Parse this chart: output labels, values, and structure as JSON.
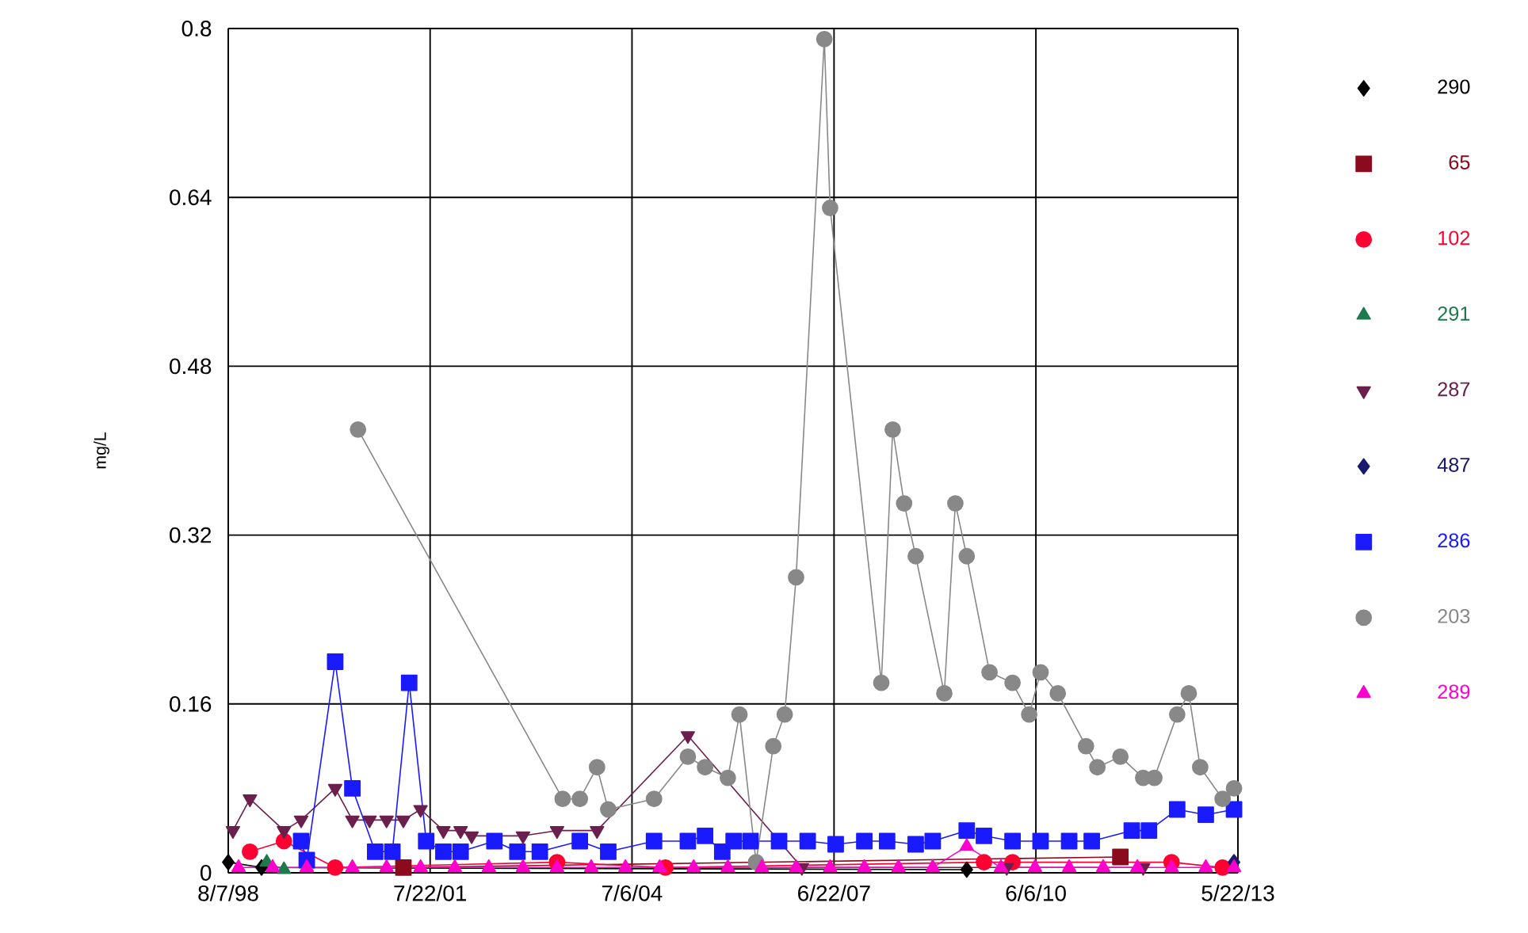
{
  "chart_data": {
    "type": "line",
    "ylabel": "mg/L",
    "xlim": [
      "1998-08-07",
      "2013-05-22"
    ],
    "xticks": [
      {
        "value": "1998-08-07",
        "label": "8/7/98"
      },
      {
        "value": "2001-07-22",
        "label": "7/22/01"
      },
      {
        "value": "2004-07-06",
        "label": "7/6/04"
      },
      {
        "value": "2007-06-22",
        "label": "6/22/07"
      },
      {
        "value": "2010-06-06",
        "label": "6/6/10"
      },
      {
        "value": "2013-05-22",
        "label": "5/22/13"
      }
    ],
    "ylim": [
      0,
      0.8
    ],
    "yticks": [
      0,
      0.16,
      0.32,
      0.48,
      0.64,
      0.8
    ],
    "grid": true,
    "legend": "right",
    "series": [
      {
        "name": "290",
        "color": "#000000",
        "marker": "diamond",
        "x": [
          "1998-08-07",
          "1999-02",
          "2009-06"
        ],
        "values": [
          0.01,
          0.005,
          0.003
        ]
      },
      {
        "name": "65",
        "color": "#8b0a1e",
        "marker": "square",
        "x": [
          "2001-03",
          "2011-09"
        ],
        "values": [
          0.005,
          0.015
        ]
      },
      {
        "name": "102",
        "color": "#ff0033",
        "marker": "circle",
        "x": [
          "1998-12",
          "1999-06",
          "2000-03",
          "2003-06",
          "2005-01",
          "2009-09",
          "2010-02",
          "2012-06",
          "2013-03"
        ],
        "values": [
          0.02,
          0.03,
          0.005,
          0.01,
          0.005,
          0.01,
          0.01,
          0.01,
          0.005
        ]
      },
      {
        "name": "291",
        "color": "#1e7a4a",
        "marker": "triangle",
        "x": [
          "1999-03",
          "1999-06"
        ],
        "values": [
          0.01,
          0.003
        ]
      },
      {
        "name": "287",
        "color": "#6b1f4d",
        "marker": "triangle-down",
        "x": [
          "1998-09",
          "1998-12",
          "1999-06",
          "1999-09",
          "2000-03",
          "2000-06",
          "2000-09",
          "2000-12",
          "2001-03",
          "2001-06",
          "2001-10",
          "2002-01",
          "2002-03",
          "2002-12",
          "2003-06",
          "2004-01",
          "2005-05",
          "2007-01",
          "2010-01",
          "2012-01"
        ],
        "values": [
          0.04,
          0.07,
          0.04,
          0.05,
          0.08,
          0.05,
          0.05,
          0.05,
          0.05,
          0.06,
          0.04,
          0.04,
          0.035,
          0.035,
          0.04,
          0.04,
          0.13,
          0.005,
          0.005,
          0.005
        ]
      },
      {
        "name": "487",
        "color": "#1a1a6e",
        "marker": "diamond",
        "x": [
          "2013-05"
        ],
        "values": [
          0.01
        ]
      },
      {
        "name": "286",
        "color": "#1a1aff",
        "marker": "square",
        "x": [
          "1999-09",
          "1999-10",
          "2000-03",
          "2000-06",
          "2000-10",
          "2001-01",
          "2001-04",
          "2001-07",
          "2001-10",
          "2002-01",
          "2002-07",
          "2002-11",
          "2003-03",
          "2003-10",
          "2004-03",
          "2004-11",
          "2005-05",
          "2005-08",
          "2005-11",
          "2006-01",
          "2006-04",
          "2006-09",
          "2007-02",
          "2007-07",
          "2007-12",
          "2008-04",
          "2008-09",
          "2008-12",
          "2009-06",
          "2009-09",
          "2010-02",
          "2010-07",
          "2010-12",
          "2011-04",
          "2011-11",
          "2012-02",
          "2012-07",
          "2012-12",
          "2013-05"
        ],
        "values": [
          0.03,
          0.012,
          0.2,
          0.08,
          0.02,
          0.02,
          0.18,
          0.03,
          0.02,
          0.02,
          0.03,
          0.02,
          0.02,
          0.03,
          0.02,
          0.03,
          0.03,
          0.035,
          0.02,
          0.03,
          0.03,
          0.03,
          0.03,
          0.027,
          0.03,
          0.03,
          0.027,
          0.03,
          0.04,
          0.035,
          0.03,
          0.03,
          0.03,
          0.03,
          0.04,
          0.04,
          0.06,
          0.055,
          0.06
        ]
      },
      {
        "name": "203",
        "color": "#888888",
        "marker": "circle",
        "x": [
          "2000-07",
          "2003-07",
          "2003-10",
          "2004-01",
          "2004-03",
          "2004-11",
          "2005-05",
          "2005-08",
          "2005-12",
          "2006-02",
          "2006-05",
          "2006-08",
          "2006-10",
          "2006-12",
          "2007-05",
          "2007-06",
          "2008-03",
          "2008-05",
          "2008-07",
          "2008-09",
          "2009-02",
          "2009-04",
          "2009-06",
          "2009-10",
          "2010-02",
          "2010-05",
          "2010-07",
          "2010-10",
          "2011-03",
          "2011-05",
          "2011-09",
          "2012-01",
          "2012-03",
          "2012-07",
          "2012-09",
          "2012-11",
          "2013-03",
          "2013-05"
        ],
        "values": [
          0.42,
          0.07,
          0.07,
          0.1,
          0.06,
          0.07,
          0.11,
          0.1,
          0.09,
          0.15,
          0.01,
          0.12,
          0.15,
          0.28,
          0.79,
          0.63,
          0.18,
          0.42,
          0.35,
          0.3,
          0.17,
          0.35,
          0.3,
          0.19,
          0.18,
          0.15,
          0.19,
          0.17,
          0.12,
          0.1,
          0.11,
          0.09,
          0.09,
          0.15,
          0.17,
          0.1,
          0.07,
          0.08
        ]
      },
      {
        "name": "289",
        "color": "#ff00cc",
        "marker": "triangle",
        "x": [
          "1998-10",
          "1999-04",
          "1999-10",
          "2000-06",
          "2000-12",
          "2001-06",
          "2001-12",
          "2002-06",
          "2002-12",
          "2003-06",
          "2003-12",
          "2004-06",
          "2004-12",
          "2005-06",
          "2005-12",
          "2006-06",
          "2006-12",
          "2007-06",
          "2007-12",
          "2008-06",
          "2008-12",
          "2009-06",
          "2009-12",
          "2010-06",
          "2010-12",
          "2011-06",
          "2011-12",
          "2012-06",
          "2012-12",
          "2013-05"
        ],
        "values": [
          0.005,
          0.005,
          0.005,
          0.005,
          0.005,
          0.005,
          0.005,
          0.005,
          0.005,
          0.005,
          0.005,
          0.005,
          0.005,
          0.005,
          0.005,
          0.005,
          0.005,
          0.005,
          0.005,
          0.005,
          0.005,
          0.025,
          0.005,
          0.005,
          0.005,
          0.005,
          0.005,
          0.005,
          0.005,
          0.005
        ]
      }
    ]
  }
}
